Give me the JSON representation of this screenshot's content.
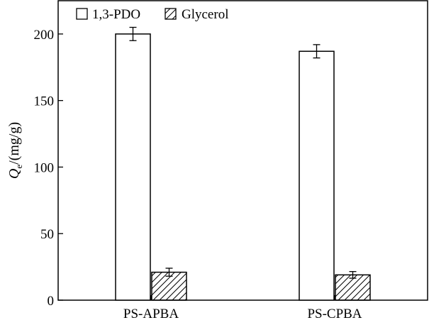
{
  "chart_data": {
    "type": "bar",
    "title": "",
    "xlabel": "",
    "ylabel": {
      "symbol": "Q",
      "subscript": "e",
      "unit": "/(mg/g)"
    },
    "categories": [
      "PS-APBA",
      "PS-CPBA"
    ],
    "series": [
      {
        "name": "1,3-PDO",
        "values": [
          200,
          187
        ],
        "errors": [
          5,
          5
        ],
        "pattern": "empty"
      },
      {
        "name": "Glycerol",
        "values": [
          21,
          19
        ],
        "errors": [
          3,
          2.5
        ],
        "pattern": "hatched"
      }
    ],
    "ylim": [
      0,
      225
    ],
    "yticks": [
      "0",
      "50",
      "100",
      "150",
      "200"
    ],
    "legend_position": "top-left",
    "grid": false,
    "colors": {
      "bar_fill": "#ffffff",
      "stroke": "#000000"
    }
  }
}
